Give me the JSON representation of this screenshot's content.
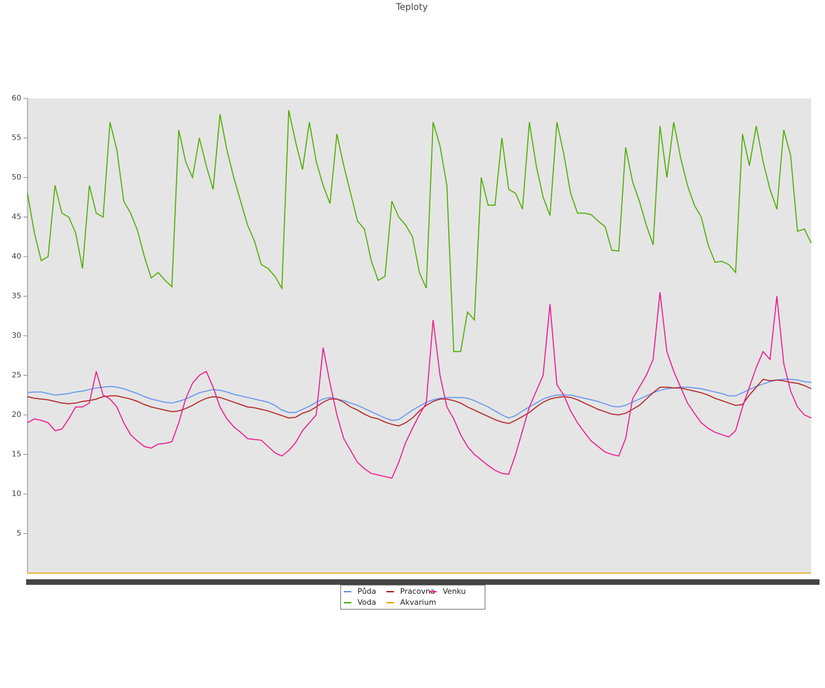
{
  "chart_data": {
    "type": "line",
    "title": "Teploty",
    "ylim": [
      0,
      60
    ],
    "yticks": [
      5,
      10,
      15,
      20,
      25,
      30,
      35,
      40,
      45,
      50,
      55,
      60
    ],
    "series": [
      {
        "name": "Půda",
        "color": "#6495ed",
        "values": [
          22.8,
          22.9,
          22.9,
          22.7,
          22.5,
          22.6,
          22.7,
          22.9,
          23.0,
          23.2,
          23.4,
          23.5,
          23.6,
          23.5,
          23.3,
          23.0,
          22.7,
          22.3,
          22.0,
          21.8,
          21.6,
          21.5,
          21.7,
          22.0,
          22.4,
          22.8,
          23.0,
          23.2,
          23.1,
          22.9,
          22.6,
          22.4,
          22.2,
          22.0,
          21.8,
          21.6,
          21.2,
          20.6,
          20.3,
          20.3,
          20.7,
          21.1,
          21.6,
          22.0,
          22.2,
          22.0,
          21.8,
          21.5,
          21.2,
          20.8,
          20.4,
          20.0,
          19.6,
          19.3,
          19.4,
          20.0,
          20.6,
          21.1,
          21.6,
          21.9,
          22.1,
          22.2,
          22.2,
          22.2,
          22.1,
          21.8,
          21.4,
          21.0,
          20.5,
          20.0,
          19.6,
          19.9,
          20.5,
          21.0,
          21.5,
          22.0,
          22.3,
          22.5,
          22.5,
          22.5,
          22.3,
          22.1,
          21.9,
          21.7,
          21.4,
          21.1,
          21.0,
          21.2,
          21.6,
          22.0,
          22.4,
          22.8,
          23.1,
          23.3,
          23.4,
          23.5,
          23.5,
          23.4,
          23.3,
          23.1,
          22.9,
          22.7,
          22.4,
          22.4,
          22.8,
          23.2,
          23.6,
          23.9,
          24.2,
          24.4,
          24.5,
          24.5,
          24.4,
          24.2,
          24.1
        ]
      },
      {
        "name": "Voda",
        "color": "#4cae00",
        "values": [
          48,
          43,
          39.5,
          40,
          49,
          45.5,
          45,
          43,
          38.5,
          49,
          45.5,
          45,
          57,
          53.5,
          47,
          45.5,
          43.3,
          40,
          37.3,
          38,
          37,
          36.2,
          56,
          52,
          50,
          55,
          51.5,
          48.5,
          58,
          53.5,
          50,
          47,
          44,
          42,
          39,
          38.5,
          37.5,
          36,
          58.5,
          54.5,
          51,
          57,
          52,
          49,
          46.7,
          55.5,
          51.5,
          48,
          44.5,
          43.5,
          39.5,
          37,
          37.5,
          47,
          45,
          44,
          42.5,
          38,
          36,
          57,
          54,
          49,
          28,
          28,
          33,
          32,
          50,
          46.5,
          46.5,
          55,
          48.5,
          48,
          46,
          57,
          51.5,
          47.5,
          45.2,
          57,
          53,
          48,
          45.5,
          45.5,
          45.3,
          44.5,
          43.8,
          40.8,
          40.7,
          53.8,
          49.5,
          47,
          44,
          41.5,
          56.5,
          50,
          57,
          52.5,
          49,
          46.5,
          45,
          41.5,
          39.3,
          39.4,
          39,
          38,
          55.5,
          51.5,
          56.5,
          52,
          48.5,
          46,
          56,
          52.8,
          43.2,
          43.5,
          41.7
        ]
      },
      {
        "name": "Pracovna",
        "color": "#b22222",
        "values": [
          22.3,
          22.1,
          22.0,
          21.9,
          21.7,
          21.5,
          21.4,
          21.5,
          21.7,
          21.8,
          22.0,
          22.3,
          22.4,
          22.4,
          22.2,
          22.0,
          21.7,
          21.3,
          21.0,
          20.8,
          20.6,
          20.4,
          20.5,
          20.8,
          21.2,
          21.7,
          22.1,
          22.3,
          22.2,
          21.9,
          21.6,
          21.3,
          21.0,
          20.9,
          20.7,
          20.5,
          20.2,
          19.9,
          19.6,
          19.7,
          20.2,
          20.5,
          21.0,
          21.6,
          22.0,
          22.0,
          21.6,
          21.0,
          20.6,
          20.1,
          19.7,
          19.5,
          19.1,
          18.8,
          18.6,
          19.0,
          19.6,
          20.5,
          21.2,
          21.7,
          22.0,
          22.0,
          21.8,
          21.5,
          21.0,
          20.6,
          20.2,
          19.8,
          19.4,
          19.1,
          18.9,
          19.3,
          19.8,
          20.3,
          21.0,
          21.6,
          22.0,
          22.2,
          22.3,
          22.2,
          21.9,
          21.5,
          21.1,
          20.7,
          20.4,
          20.1,
          20.0,
          20.2,
          20.7,
          21.2,
          22.0,
          22.8,
          23.5,
          23.5,
          23.4,
          23.4,
          23.2,
          23.0,
          22.8,
          22.5,
          22.1,
          21.8,
          21.5,
          21.2,
          21.3,
          22.5,
          23.5,
          24.5,
          24.3,
          24.4,
          24.3,
          24.1,
          24.0,
          23.7,
          23.3
        ]
      },
      {
        "name": "Akvarium",
        "color": "#e8a317",
        "values": [
          0,
          0,
          0,
          0,
          0,
          0,
          0,
          0,
          0,
          0,
          0,
          0,
          0,
          0,
          0,
          0,
          0,
          0,
          0,
          0,
          0,
          0,
          0,
          0,
          0,
          0,
          0,
          0,
          0,
          0,
          0,
          0,
          0,
          0,
          0,
          0,
          0,
          0,
          0,
          0,
          0,
          0,
          0,
          0,
          0,
          0,
          0,
          0,
          0,
          0,
          0,
          0,
          0,
          0,
          0,
          0,
          0,
          0,
          0,
          0,
          0,
          0,
          0,
          0,
          0,
          0,
          0,
          0,
          0,
          0,
          0,
          0,
          0,
          0,
          0,
          0,
          0,
          0,
          0,
          0,
          0,
          0,
          0,
          0,
          0,
          0,
          0,
          0,
          0,
          0,
          0,
          0,
          0,
          0,
          0,
          0,
          0,
          0,
          0,
          0,
          0,
          0,
          0,
          0,
          0,
          0,
          0,
          0,
          0,
          0,
          0,
          0,
          0,
          0,
          0
        ]
      },
      {
        "name": "Venku",
        "color": "#ec1a8e",
        "values": [
          19,
          19.5,
          19.3,
          19,
          18,
          18.2,
          19.5,
          21,
          21,
          21.5,
          25.5,
          22.5,
          22,
          21,
          19,
          17.5,
          16.7,
          16,
          15.8,
          16.3,
          16.4,
          16.6,
          19,
          22,
          24,
          25,
          25.5,
          23.5,
          21,
          19.5,
          18.5,
          17.8,
          17,
          16.9,
          16.8,
          16,
          15.2,
          14.8,
          15.5,
          16.5,
          18,
          19,
          20,
          28.5,
          24,
          20,
          17,
          15.5,
          14,
          13.2,
          12.6,
          12.4,
          12.2,
          12,
          14,
          16.5,
          18.3,
          20,
          21.5,
          32,
          25,
          21,
          19.5,
          17.5,
          16,
          15,
          14.3,
          13.6,
          13,
          12.6,
          12.5,
          15,
          18,
          21,
          23,
          25,
          34,
          23.8,
          22.5,
          20.5,
          19,
          17.8,
          16.7,
          16,
          15.3,
          15,
          14.8,
          17,
          22,
          23.5,
          25,
          27,
          35.5,
          28,
          25.5,
          23.5,
          21.5,
          20.2,
          19,
          18.3,
          17.8,
          17.5,
          17.2,
          18,
          21,
          23.5,
          26,
          28,
          27,
          35,
          26.5,
          23,
          21,
          20,
          19.6
        ]
      }
    ]
  }
}
